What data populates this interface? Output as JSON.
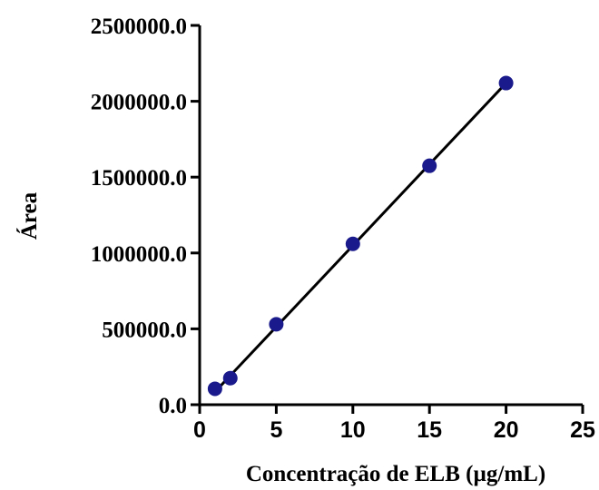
{
  "chart_data": {
    "type": "scatter",
    "title": "",
    "xlabel": "Concentração de ELB (µg/mL)",
    "ylabel": "Área",
    "xlim": [
      0,
      25
    ],
    "ylim": [
      0,
      2500000
    ],
    "x_ticks": [
      0,
      5,
      10,
      15,
      20,
      25
    ],
    "x_tick_labels": [
      "0",
      "5",
      "10",
      "15",
      "20",
      "25"
    ],
    "y_ticks": [
      0,
      500000,
      1000000,
      1500000,
      2000000,
      2500000
    ],
    "y_tick_labels": [
      "0.0",
      "500000.0",
      "1000000.0",
      "1500000.0",
      "2000000.0",
      "2500000.0"
    ],
    "grid": false,
    "legend": "none",
    "marker_color": "#1a1a8c",
    "line_color": "#000000",
    "series": [
      {
        "x": [
          1,
          2,
          5,
          10,
          15,
          20
        ],
        "y": [
          105000,
          175000,
          530000,
          1060000,
          1575000,
          2120000
        ]
      }
    ],
    "fit_line": {
      "x": [
        1,
        20
      ],
      "y": [
        85000,
        2120000
      ]
    }
  }
}
